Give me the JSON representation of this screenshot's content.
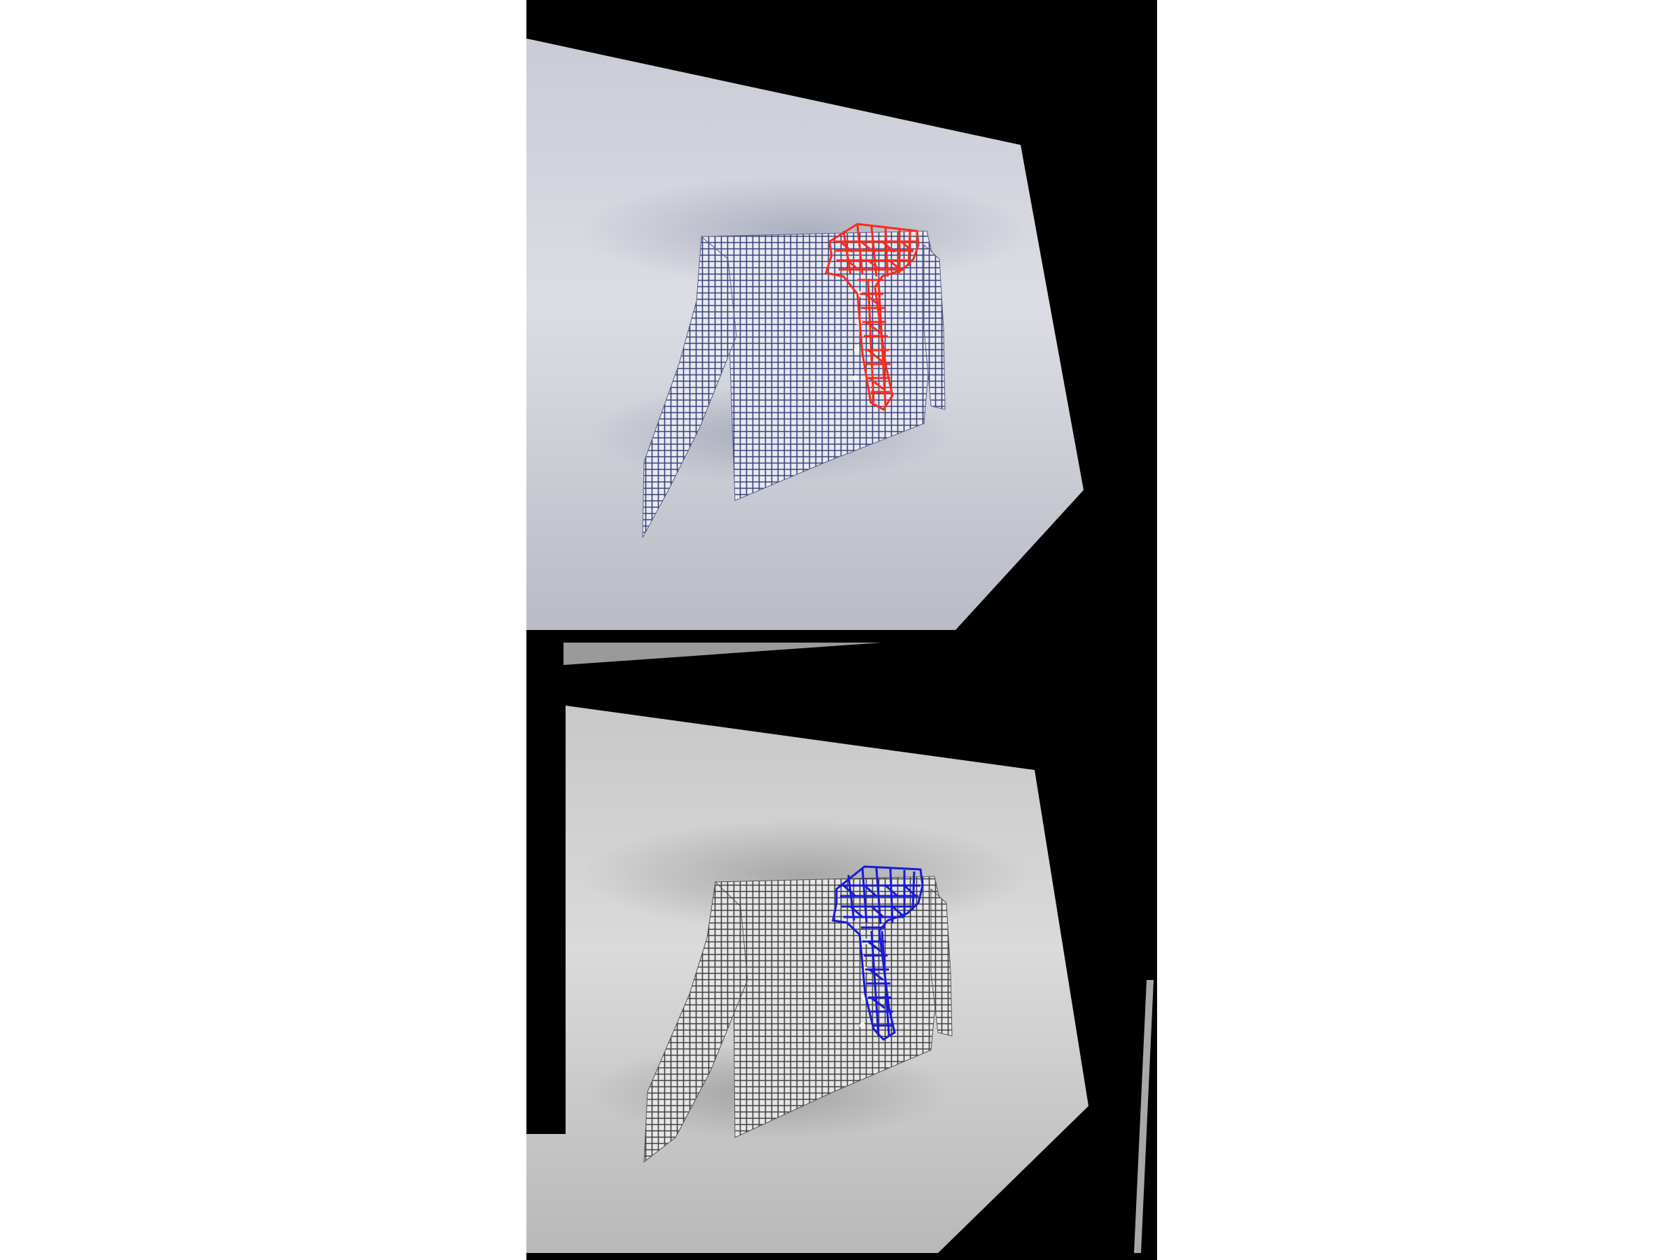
{
  "figure": {
    "panels": [
      {
        "id": "top",
        "marker_color": "#ff2a1a",
        "tone": "bluish"
      },
      {
        "id": "bottom",
        "marker_color": "#1a1ad8",
        "tone": "grayscale"
      }
    ],
    "subject": "shirt-on-cloth-sheet",
    "marker_shape": "T"
  }
}
